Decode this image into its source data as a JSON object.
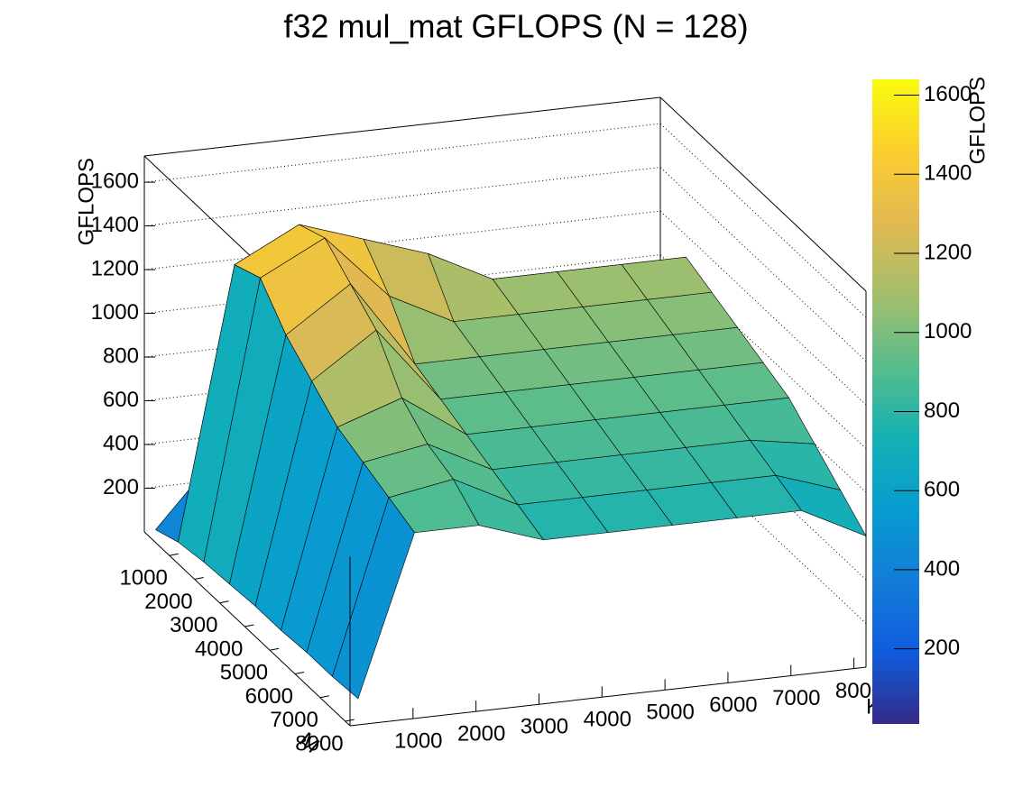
{
  "chart_data": {
    "type": "surface",
    "title": "f32 mul_mat GFLOPS  (N = 128)",
    "x_label": "K",
    "y_label": "M",
    "z_label": "GFLOPS",
    "colorbar_label": "GFLOPS",
    "x": [
      128,
      1024,
      2048,
      3072,
      4096,
      5120,
      6144,
      7168,
      8192
    ],
    "y": [
      128,
      1024,
      2048,
      3072,
      4096,
      5120,
      6144,
      7168,
      8192
    ],
    "z": [
      [
        20,
        300,
        450,
        500,
        500,
        500,
        500,
        500,
        500
      ],
      [
        60,
        1300,
        1450,
        1350,
        1250,
        1100,
        1100,
        1100,
        1100
      ],
      [
        80,
        1350,
        1500,
        1200,
        1050,
        1050,
        1050,
        1050,
        1050
      ],
      [
        90,
        1200,
        1400,
        1000,
        1000,
        1000,
        1000,
        1000,
        1000
      ],
      [
        100,
        1100,
        1300,
        950,
        950,
        950,
        950,
        950,
        950
      ],
      [
        100,
        1000,
        1100,
        900,
        900,
        900,
        900,
        900,
        900
      ],
      [
        110,
        950,
        1000,
        850,
        850,
        850,
        850,
        850,
        800
      ],
      [
        110,
        900,
        950,
        800,
        800,
        800,
        800,
        800,
        700
      ],
      [
        120,
        850,
        850,
        750,
        750,
        750,
        750,
        750,
        600
      ]
    ],
    "xlim": [
      0,
      8192
    ],
    "ylim": [
      0,
      8192
    ],
    "zlim": [
      0,
      1720
    ],
    "xticks": [
      1000,
      2000,
      3000,
      4000,
      5000,
      6000,
      7000,
      8000
    ],
    "yticks": [
      1000,
      2000,
      3000,
      4000,
      5000,
      6000,
      7000,
      8000
    ],
    "zticks": [
      200,
      400,
      600,
      800,
      1000,
      1200,
      1400,
      1600
    ],
    "clim": [
      10,
      1640
    ],
    "cticks": [
      200,
      400,
      600,
      800,
      1000,
      1200,
      1400,
      1600
    ],
    "grid": true,
    "colormap": "bird"
  }
}
